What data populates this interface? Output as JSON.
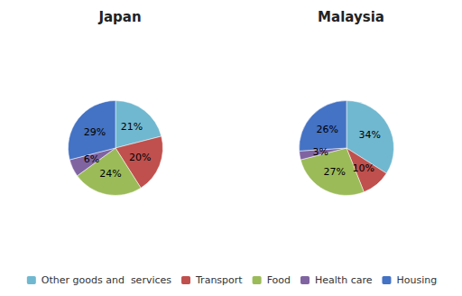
{
  "chart_data": [
    {
      "type": "pie",
      "title": "Japan",
      "categories": [
        "Other goods and  services",
        "Transport",
        "Food",
        "Health care",
        "Housing"
      ],
      "values": [
        21,
        20,
        24,
        6,
        29
      ],
      "value_labels": [
        "21%",
        "20%",
        "24%",
        "6%",
        "29%"
      ],
      "colors": [
        "#70B8D0",
        "#C0504D",
        "#9BBB59",
        "#8064A2",
        "#4472C4"
      ],
      "data_labels": true,
      "legend": "bottom"
    },
    {
      "type": "pie",
      "title": "Malaysia",
      "categories": [
        "Other goods and  services",
        "Transport",
        "Food",
        "Health care",
        "Housing"
      ],
      "values": [
        34,
        10,
        27,
        3,
        26
      ],
      "value_labels": [
        "34%",
        "10%",
        "27%",
        "3%",
        "26%"
      ],
      "colors": [
        "#70B8D0",
        "#C0504D",
        "#9BBB59",
        "#8064A2",
        "#4472C4"
      ],
      "data_labels": true,
      "legend": "bottom"
    }
  ]
}
